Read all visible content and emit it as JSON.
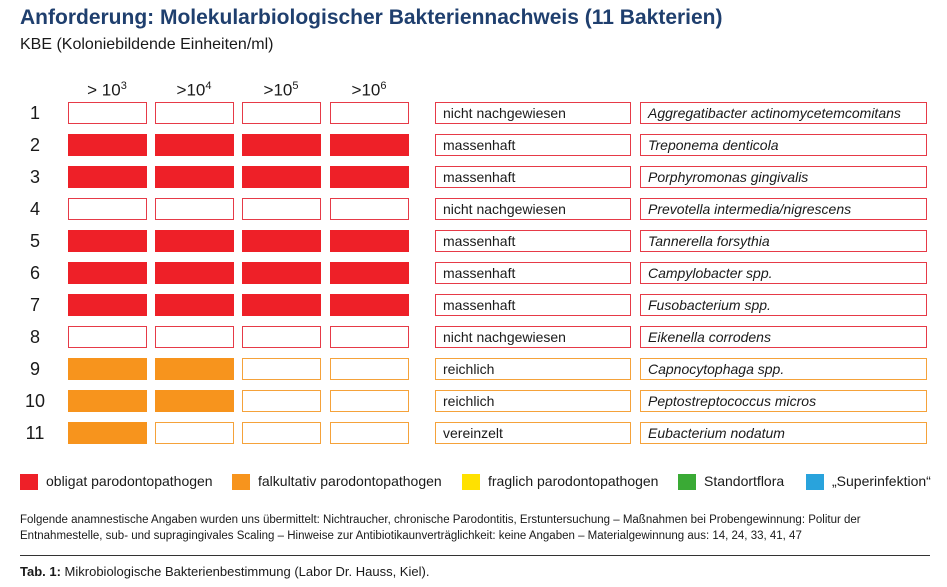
{
  "title": "Anforderung: Molekularbiologischer Bakteriennachweis (11 Bakterien)",
  "subtitle": "KBE (Koloniebildende Einheiten/ml)",
  "columns": [
    {
      "prefix": "> 10",
      "exp": "3"
    },
    {
      "prefix": ">10",
      "exp": "4"
    },
    {
      "prefix": ">10",
      "exp": "5"
    },
    {
      "prefix": ">10",
      "exp": "6"
    }
  ],
  "colors": {
    "red_fill": "#ee2028",
    "red_border": "#e63a47",
    "orange_fill": "#f7941d",
    "orange_border": "#f5a23a",
    "yellow": "#ffe100",
    "green": "#3aaa35",
    "blue": "#29a3dc"
  },
  "rows": [
    {
      "num": "1",
      "category": "red",
      "filled": 0,
      "status": "nicht nachgewiesen",
      "species": "Aggregatibacter actinomycetemcomitans"
    },
    {
      "num": "2",
      "category": "red",
      "filled": 4,
      "status": "massenhaft",
      "species": "Treponema denticola"
    },
    {
      "num": "3",
      "category": "red",
      "filled": 4,
      "status": "massenhaft",
      "species": "Porphyromonas gingivalis"
    },
    {
      "num": "4",
      "category": "red",
      "filled": 0,
      "status": "nicht nachgewiesen",
      "species": "Prevotella intermedia/nigrescens"
    },
    {
      "num": "5",
      "category": "red",
      "filled": 4,
      "status": "massenhaft",
      "species": "Tannerella forsythia"
    },
    {
      "num": "6",
      "category": "red",
      "filled": 4,
      "status": "massenhaft",
      "species": "Campylobacter spp."
    },
    {
      "num": "7",
      "category": "red",
      "filled": 4,
      "status": "massenhaft",
      "species": "Fusobacterium spp."
    },
    {
      "num": "8",
      "category": "red",
      "filled": 0,
      "status": "nicht nachgewiesen",
      "species": "Eikenella corrodens"
    },
    {
      "num": "9",
      "category": "orange",
      "filled": 2,
      "status": "reichlich",
      "species": "Capnocytophaga spp."
    },
    {
      "num": "10",
      "category": "orange",
      "filled": 2,
      "status": "reichlich",
      "species": "Peptostreptococcus micros"
    },
    {
      "num": "11",
      "category": "orange",
      "filled": 1,
      "status": "vereinzelt",
      "species": "Eubacterium nodatum"
    }
  ],
  "legend": [
    {
      "label": "obligat parodontopathogen",
      "color": "#ee2028"
    },
    {
      "label": "falkultativ parodontopathogen",
      "color": "#f7941d"
    },
    {
      "label": "fraglich parodontopathogen",
      "color": "#ffe100"
    },
    {
      "label": "Standortflora",
      "color": "#3aaa35"
    },
    {
      "label": "„Superinfektion“",
      "color": "#29a3dc"
    }
  ],
  "note": "Folgende anamnestische Angaben wurden uns übermittelt: Nichtraucher, chronische Parodontitis, Erstuntersuchung – Maßnahmen bei Probengewinnung: Politur der Entnahmestelle, sub- und supragingivales Scaling – Hinweise zur Antibiotikaunverträglichkeit: keine Angaben – Materialgewinnung aus: 14, 24, 33, 41, 47",
  "caption": {
    "label": "Tab. 1:",
    "text": " Mikrobiologische Bakterienbestimmung (Labor Dr. Hauss, Kiel)."
  }
}
